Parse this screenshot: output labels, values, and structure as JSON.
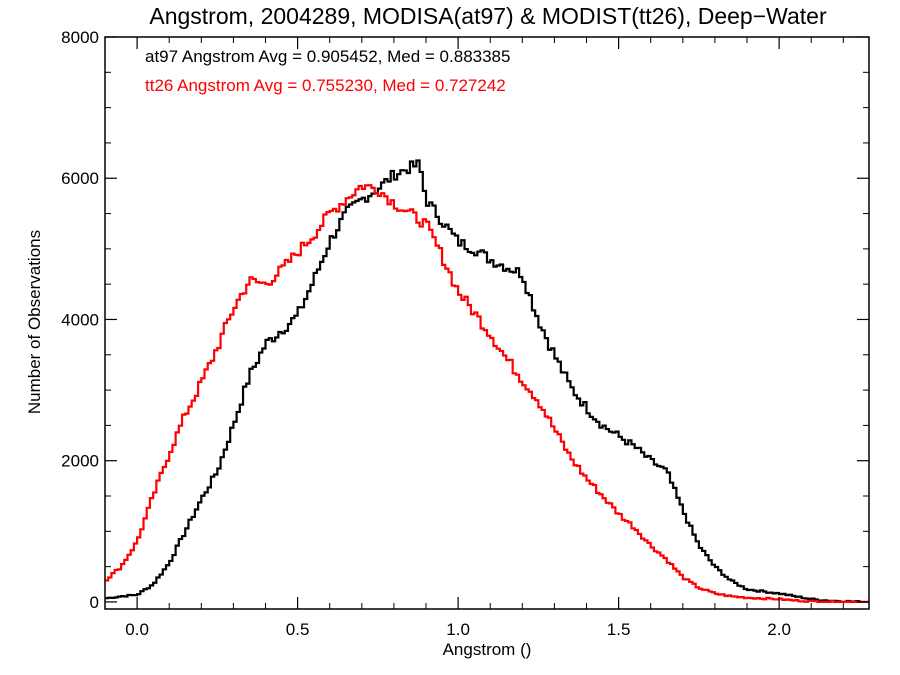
{
  "chart_data": {
    "type": "line",
    "step": true,
    "title": "Angstrom, 2004289, MODISA(at97) & MODIST(tt26), Deep−Water",
    "xlabel": "Angstrom ()",
    "ylabel": "Number of Observations",
    "xlim": [
      -0.1,
      2.28
    ],
    "ylim": [
      -100,
      8000
    ],
    "xticks": [
      0.0,
      0.5,
      1.0,
      1.5,
      2.0
    ],
    "xtick_labels": [
      "0.0",
      "0.5",
      "1.0",
      "1.5",
      "2.0"
    ],
    "xminor_step": 0.1,
    "yticks": [
      0,
      2000,
      4000,
      6000,
      8000
    ],
    "ytick_labels": [
      "0",
      "2000",
      "4000",
      "6000",
      "8000"
    ],
    "yminor_step": 500,
    "grid": false,
    "annotations": [
      {
        "text": "at97 Angstrom Avg = 0.905452, Med = 0.883385",
        "color": "#000000"
      },
      {
        "text": "tt26 Angstrom Avg = 0.755230, Med = 0.727242",
        "color": "#ff0000"
      }
    ],
    "series": [
      {
        "color": "#000000",
        "x": [
          -0.1,
          -0.05,
          0.0,
          0.05,
          0.1,
          0.15,
          0.2,
          0.25,
          0.3,
          0.35,
          0.4,
          0.45,
          0.5,
          0.55,
          0.6,
          0.65,
          0.7,
          0.75,
          0.8,
          0.85,
          0.88,
          0.9,
          0.95,
          1.0,
          1.05,
          1.1,
          1.15,
          1.2,
          1.25,
          1.3,
          1.35,
          1.4,
          1.45,
          1.5,
          1.55,
          1.6,
          1.65,
          1.7,
          1.75,
          1.8,
          1.85,
          1.9,
          1.95,
          2.0,
          2.05,
          2.1,
          2.15,
          2.2,
          2.28
        ],
        "y": [
          50,
          80,
          100,
          250,
          550,
          1000,
          1450,
          1850,
          2500,
          3200,
          3650,
          3850,
          4050,
          4550,
          5100,
          5500,
          5700,
          5850,
          6050,
          6150,
          6200,
          5700,
          5400,
          5100,
          5000,
          4850,
          4750,
          4650,
          4000,
          3500,
          3050,
          2750,
          2500,
          2350,
          2200,
          2000,
          1850,
          1300,
          800,
          500,
          300,
          180,
          150,
          120,
          80,
          40,
          20,
          10,
          0
        ]
      },
      {
        "color": "#ff0000",
        "x": [
          -0.1,
          -0.05,
          0.0,
          0.05,
          0.1,
          0.15,
          0.2,
          0.25,
          0.3,
          0.35,
          0.4,
          0.45,
          0.5,
          0.55,
          0.6,
          0.65,
          0.7,
          0.75,
          0.8,
          0.85,
          0.9,
          0.95,
          1.0,
          1.05,
          1.1,
          1.15,
          1.2,
          1.25,
          1.3,
          1.35,
          1.4,
          1.45,
          1.5,
          1.55,
          1.6,
          1.65,
          1.7,
          1.75,
          1.8,
          1.85,
          1.9,
          1.95,
          2.0,
          2.05,
          2.1,
          2.15,
          2.2,
          2.28
        ],
        "y": [
          300,
          500,
          850,
          1500,
          2100,
          2650,
          3100,
          3600,
          4150,
          4550,
          4500,
          4700,
          4950,
          5200,
          5500,
          5700,
          5900,
          5850,
          5650,
          5500,
          5350,
          4900,
          4400,
          4100,
          3800,
          3450,
          3150,
          2850,
          2450,
          2050,
          1750,
          1500,
          1250,
          1050,
          800,
          600,
          350,
          200,
          120,
          80,
          60,
          50,
          40,
          20,
          10,
          5,
          0,
          0
        ]
      }
    ]
  }
}
